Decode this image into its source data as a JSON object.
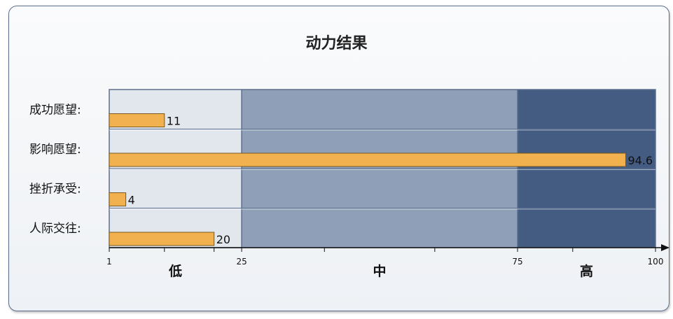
{
  "chart_data": {
    "type": "bar",
    "orientation": "horizontal",
    "title": "动力结果",
    "categories": [
      "成功愿望:",
      "影响愿望:",
      "挫折承受:",
      "人际交往:"
    ],
    "values": [
      11,
      94.6,
      4,
      20
    ],
    "value_labels": [
      "11",
      "94.6",
      "4",
      "20"
    ],
    "xlim": [
      1,
      100
    ],
    "x_ticks": [
      {
        "value": 1,
        "label": "1"
      },
      {
        "value": 25,
        "label": "25"
      },
      {
        "value": 75,
        "label": "75"
      },
      {
        "value": 100,
        "label": "100"
      }
    ],
    "minor_ticks": [
      11,
      20,
      40,
      60,
      85
    ],
    "bands": [
      {
        "from": 1,
        "to": 25,
        "label": "低",
        "color": "#e2e7ed"
      },
      {
        "from": 25,
        "to": 75,
        "label": "中",
        "color": "#8e9fb7"
      },
      {
        "from": 75,
        "to": 100,
        "label": "高",
        "color": "#445b82"
      }
    ],
    "bar_color": "#f2b14f",
    "bar_border_color": "#7a5a1e",
    "grid": true,
    "legend": "none"
  }
}
